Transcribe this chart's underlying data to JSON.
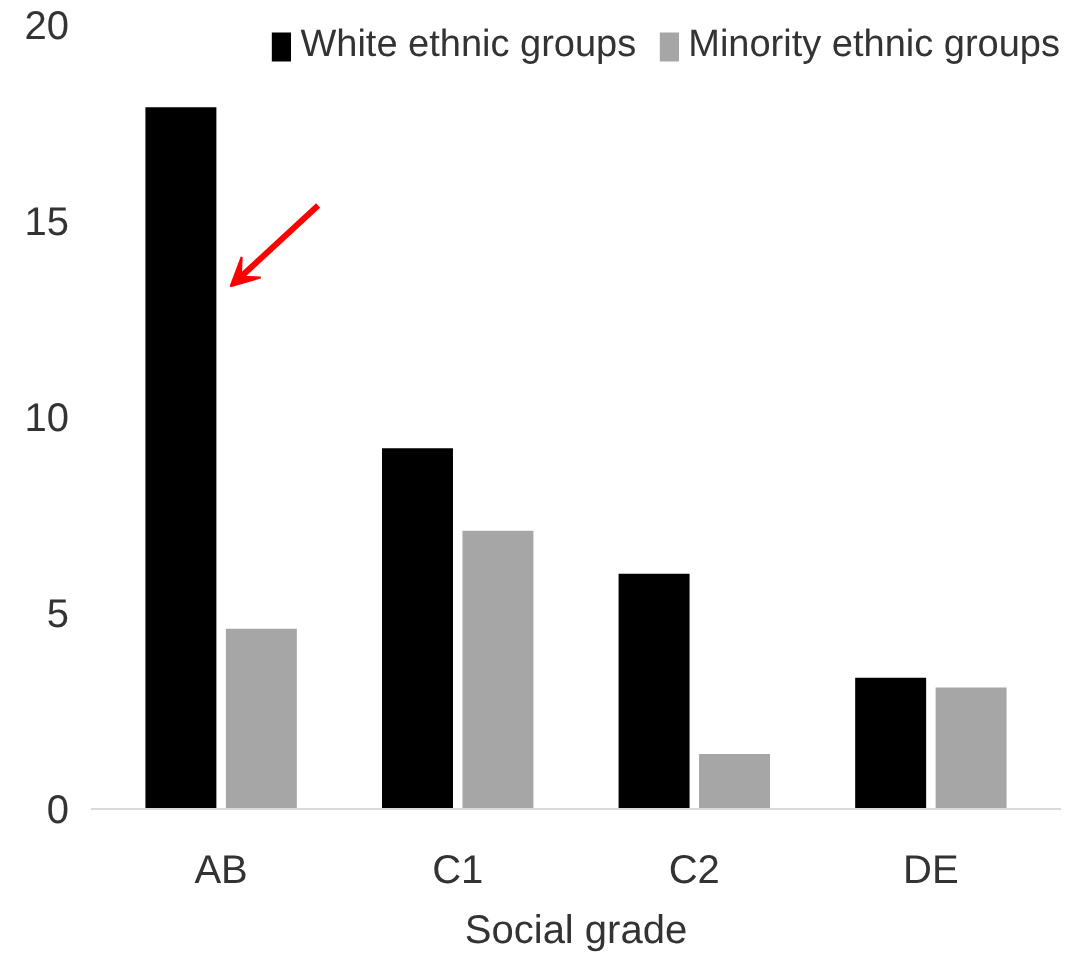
{
  "chart_data": {
    "type": "bar",
    "xlabel": "Social grade",
    "categories": [
      "AB",
      "C1",
      "C2",
      "DE"
    ],
    "series": [
      {
        "name": "White ethnic groups",
        "color": "#000000",
        "values": [
          17.9,
          9.2,
          6.0,
          3.35
        ]
      },
      {
        "name": "Minority ethnic groups",
        "color": "#a6a6a6",
        "values": [
          4.6,
          7.1,
          1.4,
          3.1
        ]
      }
    ],
    "ylim": [
      0,
      20
    ],
    "yticks": [
      0,
      5,
      10,
      15,
      20
    ],
    "grid": false,
    "legend": "top"
  }
}
